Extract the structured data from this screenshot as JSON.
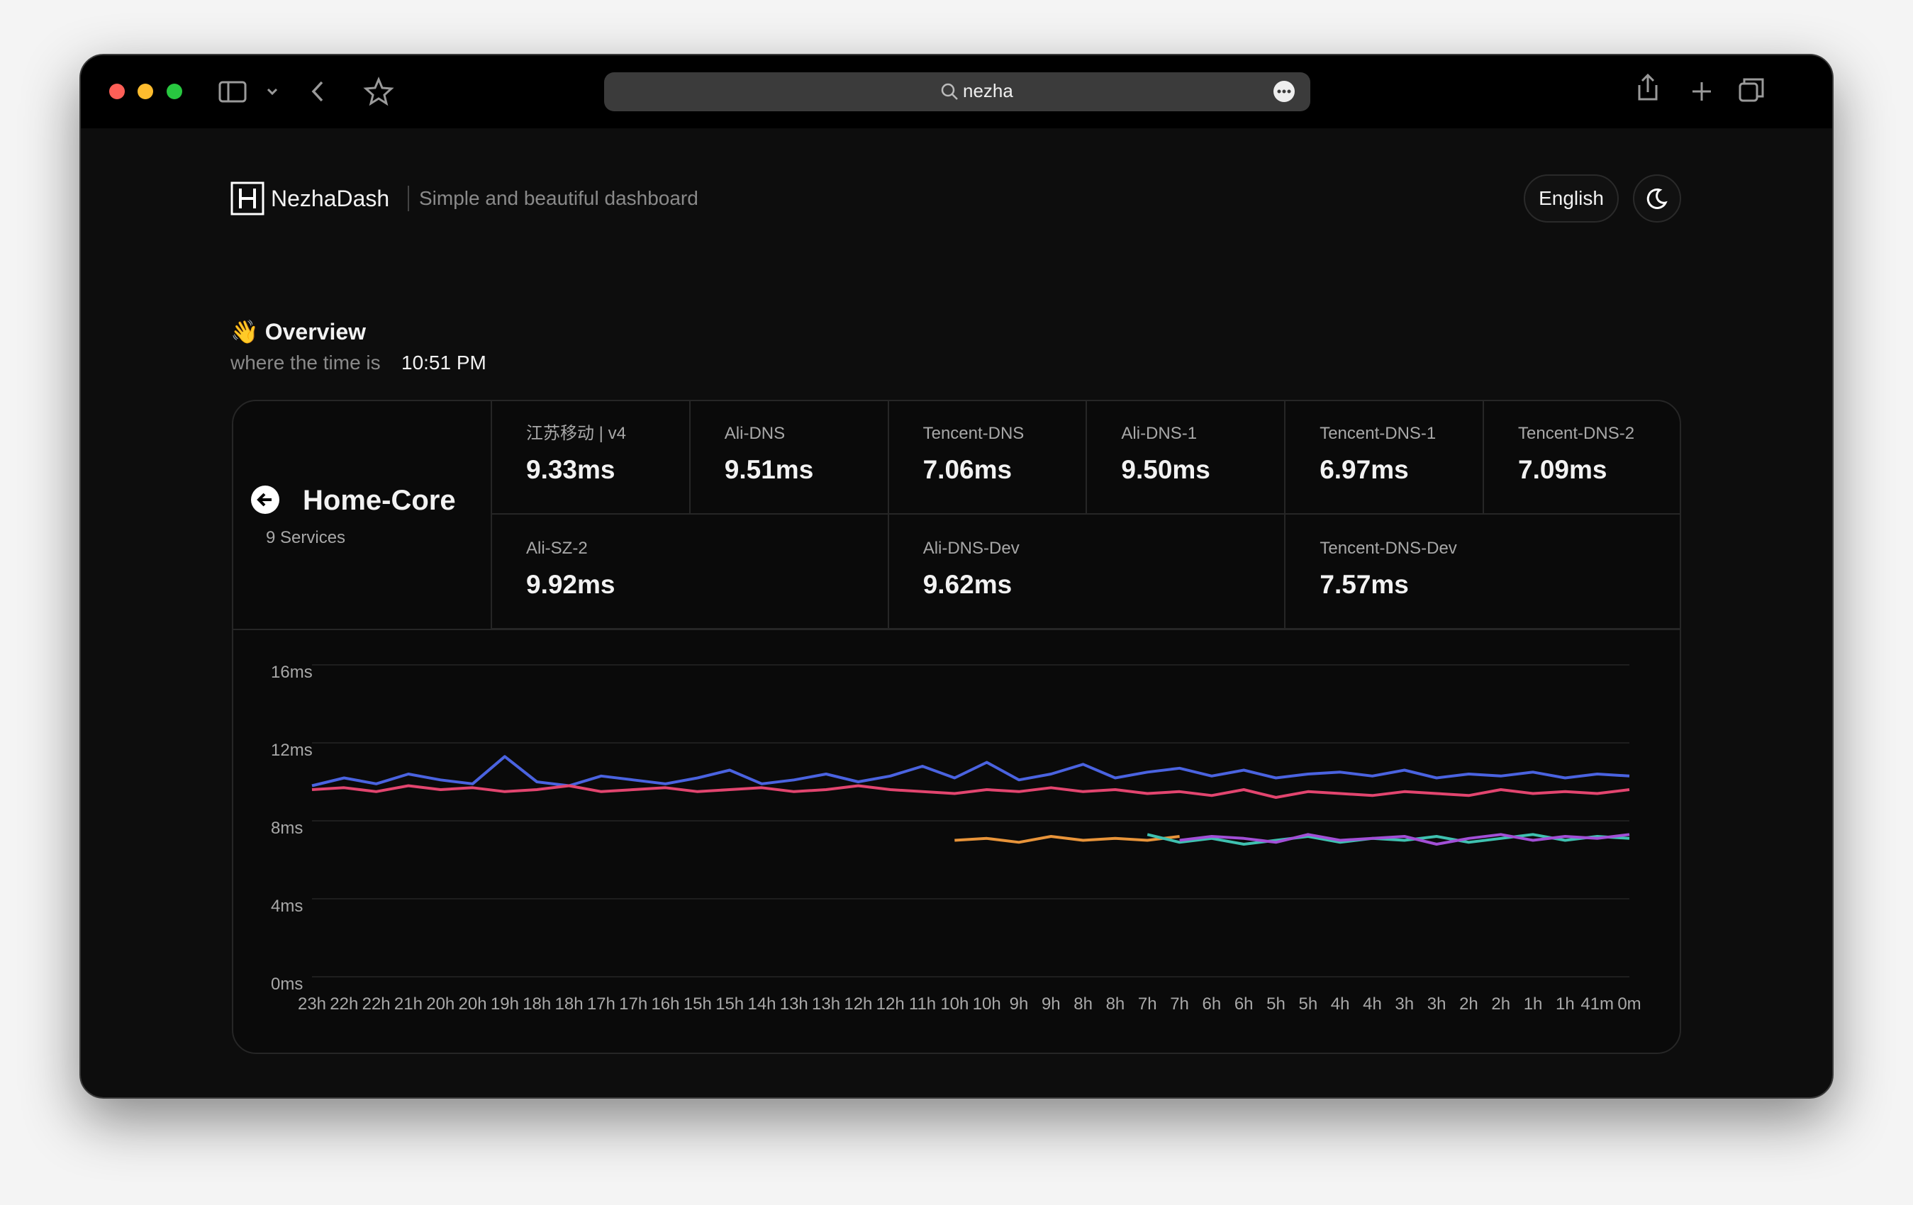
{
  "browser": {
    "address": "nezha"
  },
  "header": {
    "brand": "NezhaDash",
    "tagline": "Simple and beautiful dashboard",
    "language": "English"
  },
  "overview": {
    "title": "👋 Overview",
    "time_prefix": "where the time is",
    "time": "10:51 PM"
  },
  "monitor": {
    "group": "Home-Core",
    "count": "9 Services",
    "services": [
      {
        "name": "江苏移动 | v4",
        "latency": "9.33ms"
      },
      {
        "name": "Ali-DNS",
        "latency": "9.51ms"
      },
      {
        "name": "Tencent-DNS",
        "latency": "7.06ms"
      },
      {
        "name": "Ali-DNS-1",
        "latency": "9.50ms"
      },
      {
        "name": "Tencent-DNS-1",
        "latency": "6.97ms"
      },
      {
        "name": "Tencent-DNS-2",
        "latency": "7.09ms"
      },
      {
        "name": "Ali-SZ-2",
        "latency": "9.92ms"
      },
      {
        "name": "Ali-DNS-Dev",
        "latency": "9.62ms"
      },
      {
        "name": "Tencent-DNS-Dev",
        "latency": "7.57ms"
      }
    ]
  },
  "chart_data": {
    "type": "line",
    "categories": [
      "23h",
      "22h",
      "22h",
      "21h",
      "20h",
      "20h",
      "19h",
      "18h",
      "18h",
      "17h",
      "17h",
      "16h",
      "15h",
      "15h",
      "14h",
      "13h",
      "13h",
      "12h",
      "12h",
      "11h",
      "10h",
      "10h",
      "9h",
      "9h",
      "8h",
      "8h",
      "7h",
      "7h",
      "6h",
      "6h",
      "5h",
      "5h",
      "4h",
      "4h",
      "3h",
      "3h",
      "2h",
      "2h",
      "1h",
      "1h",
      "41m",
      "0m"
    ],
    "series": [
      {
        "color": "#4a63e0",
        "values": [
          9.8,
          10.2,
          9.9,
          10.4,
          10.1,
          9.9,
          11.3,
          10.0,
          9.8,
          10.3,
          10.1,
          9.9,
          10.2,
          10.6,
          9.9,
          10.1,
          10.4,
          10.0,
          10.3,
          10.8,
          10.2,
          11.0,
          10.1,
          10.4,
          10.9,
          10.2,
          10.5,
          10.7,
          10.3,
          10.6,
          10.2,
          10.4,
          10.5,
          10.3,
          10.6,
          10.2,
          10.4,
          10.3,
          10.5,
          10.2,
          10.4,
          10.3
        ]
      },
      {
        "color": "#e2456f",
        "values": [
          9.6,
          9.7,
          9.5,
          9.8,
          9.6,
          9.7,
          9.5,
          9.6,
          9.8,
          9.5,
          9.6,
          9.7,
          9.5,
          9.6,
          9.7,
          9.5,
          9.6,
          9.8,
          9.6,
          9.5,
          9.4,
          9.6,
          9.5,
          9.7,
          9.5,
          9.6,
          9.4,
          9.5,
          9.3,
          9.6,
          9.2,
          9.5,
          9.4,
          9.3,
          9.5,
          9.4,
          9.3,
          9.6,
          9.4,
          9.5,
          9.4,
          9.6
        ]
      },
      {
        "color": "#e8943a",
        "values": [
          null,
          null,
          null,
          null,
          null,
          null,
          null,
          null,
          null,
          null,
          null,
          null,
          null,
          null,
          null,
          null,
          null,
          null,
          null,
          null,
          7.0,
          7.1,
          6.9,
          7.2,
          7.0,
          7.1,
          7.0,
          7.2,
          null,
          null,
          null,
          null,
          null,
          null,
          null,
          null,
          null,
          null,
          null,
          null,
          null,
          null
        ]
      },
      {
        "color": "#3fc1b0",
        "values": [
          null,
          null,
          null,
          null,
          null,
          null,
          null,
          null,
          null,
          null,
          null,
          null,
          null,
          null,
          null,
          null,
          null,
          null,
          null,
          null,
          null,
          null,
          null,
          null,
          null,
          null,
          7.3,
          6.9,
          7.1,
          6.8,
          7.0,
          7.2,
          6.9,
          7.1,
          7.0,
          7.2,
          6.9,
          7.1,
          7.3,
          7.0,
          7.2,
          7.1
        ]
      },
      {
        "color": "#a24fd6",
        "values": [
          null,
          null,
          null,
          null,
          null,
          null,
          null,
          null,
          null,
          null,
          null,
          null,
          null,
          null,
          null,
          null,
          null,
          null,
          null,
          null,
          null,
          null,
          null,
          null,
          null,
          null,
          null,
          7.0,
          7.2,
          7.1,
          6.9,
          7.3,
          7.0,
          7.1,
          7.2,
          6.8,
          7.1,
          7.3,
          7.0,
          7.2,
          7.1,
          7.3
        ]
      }
    ],
    "ylim": [
      0,
      16
    ],
    "yticks": [
      {
        "value": 0,
        "label": "0ms"
      },
      {
        "value": 4,
        "label": "4ms"
      },
      {
        "value": 8,
        "label": "8ms"
      },
      {
        "value": 12,
        "label": "12ms"
      },
      {
        "value": 16,
        "label": "16ms"
      }
    ],
    "grid": true
  }
}
